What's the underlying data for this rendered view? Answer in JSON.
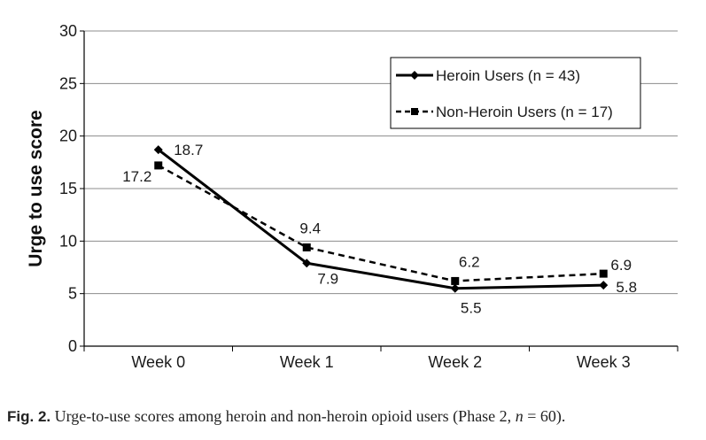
{
  "chart_data": {
    "type": "line",
    "categories": [
      "Week 0",
      "Week 1",
      "Week 2",
      "Week 3"
    ],
    "ylabel": "Urge to use score",
    "xlabel": "",
    "ylim": [
      0,
      30
    ],
    "yticks": [
      "0",
      "5",
      "10",
      "15",
      "20",
      "25",
      "30"
    ],
    "grid": true,
    "legend_position": "top-right",
    "series": [
      {
        "name": "Heroin Users (n = 43)",
        "values": [
          18.7,
          7.9,
          5.5,
          5.8
        ],
        "labels": [
          "18.7",
          "7.9",
          "5.5",
          "5.8"
        ],
        "style": "solid",
        "marker": "diamond",
        "color": "#000000"
      },
      {
        "name": "Non-Heroin Users (n = 17)",
        "values": [
          17.2,
          9.4,
          6.2,
          6.9
        ],
        "labels": [
          "17.2",
          "9.4",
          "6.2",
          "6.9"
        ],
        "style": "dashed",
        "marker": "square",
        "color": "#000000"
      }
    ]
  },
  "caption": {
    "label": "Fig. 2.",
    "text_before": " Urge-to-use scores among heroin and non-heroin opioid users (Phase 2, ",
    "n_var": "n",
    "text_after": " = 60)."
  }
}
